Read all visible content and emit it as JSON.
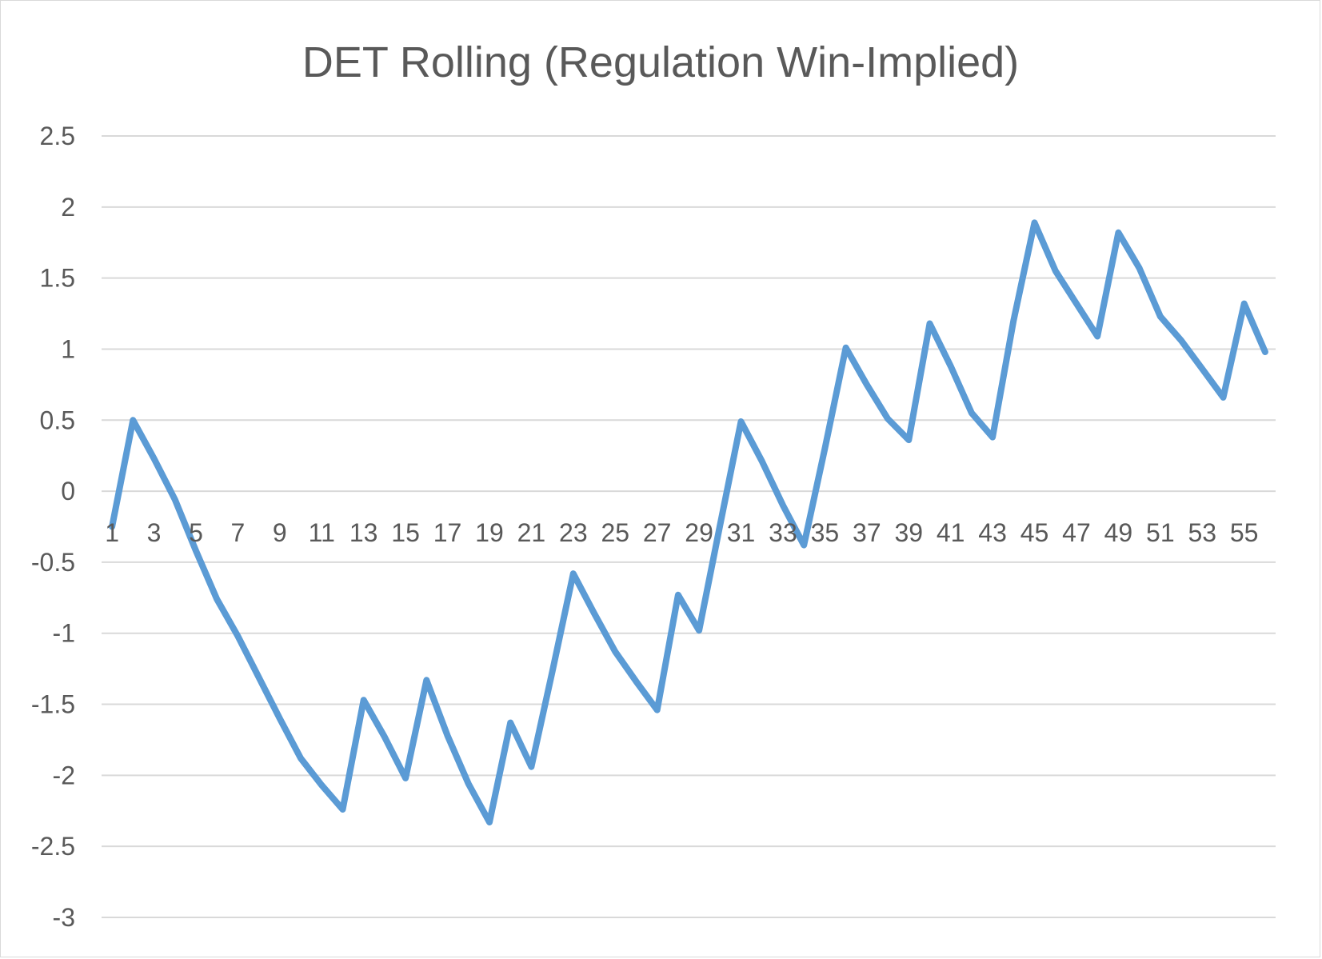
{
  "chart_data": {
    "type": "line",
    "title": "DET Rolling (Regulation Win-Implied)",
    "xlabel": "",
    "ylabel": "",
    "ylim": [
      -3,
      2.5
    ],
    "yticks": [
      "2.5",
      "2",
      "1.5",
      "1",
      "0.5",
      "0",
      "-0.5",
      "-1",
      "-1.5",
      "-2",
      "-2.5",
      "-3"
    ],
    "ytick_values": [
      2.5,
      2,
      1.5,
      1,
      0.5,
      0,
      -0.5,
      -1,
      -1.5,
      -2,
      -2.5,
      -3
    ],
    "xtick_labels": [
      "1",
      "3",
      "5",
      "7",
      "9",
      "11",
      "13",
      "15",
      "17",
      "19",
      "21",
      "23",
      "25",
      "27",
      "29",
      "31",
      "33",
      "35",
      "37",
      "39",
      "41",
      "43",
      "45",
      "47",
      "49",
      "51",
      "53",
      "55"
    ],
    "grid": true,
    "legend": "none",
    "line_color": "#5b9bd5",
    "grid_color": "#d9d9d9",
    "x": [
      1,
      2,
      3,
      4,
      5,
      6,
      7,
      8,
      9,
      10,
      11,
      12,
      13,
      14,
      15,
      16,
      17,
      18,
      19,
      20,
      21,
      22,
      23,
      24,
      25,
      26,
      27,
      28,
      29,
      30,
      31,
      32,
      33,
      34,
      35,
      36,
      37,
      38,
      39,
      40,
      41,
      42,
      43,
      44,
      45,
      46,
      47,
      48,
      49,
      50,
      51,
      52,
      53,
      54,
      55,
      56
    ],
    "series": [
      {
        "values": [
          -0.25,
          0.5,
          0.23,
          -0.06,
          -0.42,
          -0.76,
          -1.02,
          -1.31,
          -1.6,
          -1.88,
          -2.07,
          -2.24,
          -1.47,
          -1.73,
          -2.02,
          -1.33,
          -1.72,
          -2.06,
          -2.33,
          -1.63,
          -1.94,
          -1.27,
          -0.58,
          -0.86,
          -1.13,
          -1.34,
          -1.54,
          -0.73,
          -0.98,
          -0.24,
          0.49,
          0.21,
          -0.1,
          -0.38,
          0.3,
          1.01,
          0.75,
          0.51,
          0.36,
          1.18,
          0.88,
          0.55,
          0.38,
          1.2,
          1.89,
          1.55,
          1.32,
          1.09,
          1.82,
          1.57,
          1.23,
          1.06,
          0.86,
          0.66,
          1.32,
          0.98
        ]
      }
    ]
  }
}
